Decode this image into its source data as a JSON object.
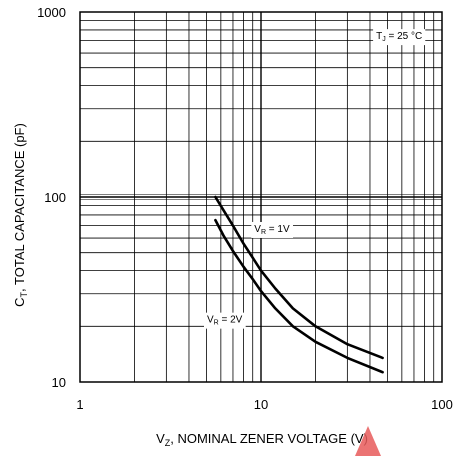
{
  "chart_data": {
    "type": "line",
    "x_scale": "log",
    "y_scale": "log",
    "xlim": [
      1,
      100
    ],
    "ylim": [
      10,
      1000
    ],
    "grid": true,
    "ylabel": {
      "main": "C",
      "sub": "T",
      "rest": ", TOTAL CAPACITANCE (pF)"
    },
    "xlabel": {
      "main": "V",
      "sub": "Z",
      "rest": ", NOMINAL ZENER VOLTAGE (V)"
    },
    "x_ticks": [
      {
        "value": 1,
        "label": "1"
      },
      {
        "value": 10,
        "label": "10"
      },
      {
        "value": 100,
        "label": "100"
      }
    ],
    "y_ticks": [
      {
        "value": 10,
        "label": "10"
      },
      {
        "value": 100,
        "label": "100"
      },
      {
        "value": 1000,
        "label": "1000"
      }
    ],
    "annotations": [
      {
        "id": "temp",
        "main": "T",
        "sub": "J",
        "rest": " = 25 °C",
        "x": 58,
        "y": 750
      },
      {
        "id": "vr1",
        "main": "V",
        "sub": "R",
        "rest": " = 1V",
        "x": 11.5,
        "y": 68
      },
      {
        "id": "vr2",
        "main": "V",
        "sub": "R",
        "rest": " = 2V",
        "x": 6.3,
        "y": 22
      }
    ],
    "series": [
      {
        "id": "vr1v",
        "x": [
          5.6,
          6.2,
          7,
          8,
          9,
          10,
          12,
          15,
          20,
          30,
          47
        ],
        "y": [
          100,
          85,
          70,
          56,
          47,
          40,
          32,
          25,
          20,
          16,
          13.5
        ]
      },
      {
        "id": "vr2v",
        "x": [
          5.6,
          6.2,
          7,
          8,
          9,
          10,
          12,
          15,
          20,
          30,
          47
        ],
        "y": [
          75,
          62,
          51,
          42,
          36,
          31,
          25,
          20,
          16.5,
          13.5,
          11.3
        ]
      }
    ],
    "colors": {
      "line": "#000000",
      "grid": "#000000",
      "watermark": "#e85a5a"
    }
  }
}
